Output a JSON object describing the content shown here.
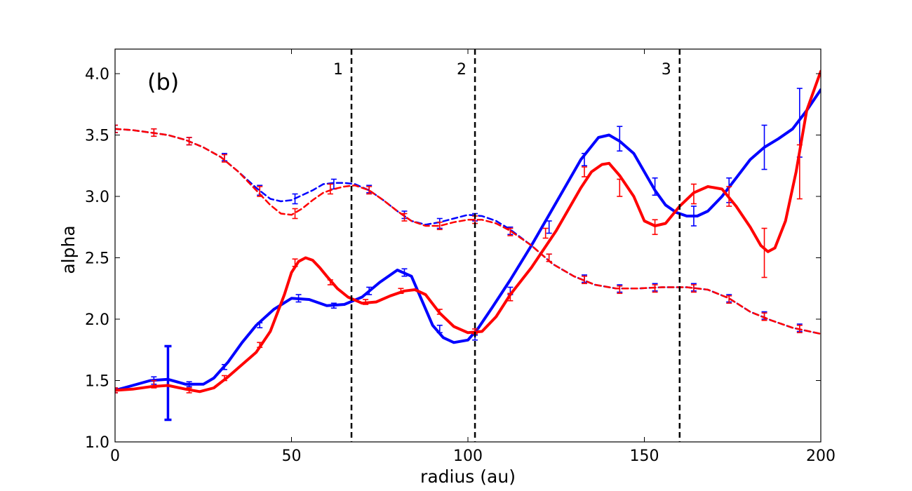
{
  "chart_data": {
    "type": "line",
    "panel_label": "(b)",
    "xlabel": "radius (au)",
    "ylabel": "alpha",
    "xlim": [
      0,
      200
    ],
    "ylim": [
      1.0,
      4.2
    ],
    "xticks": [
      0,
      50,
      100,
      150,
      200
    ],
    "yticks": [
      1.0,
      1.5,
      2.0,
      2.5,
      3.0,
      3.5,
      4.0
    ],
    "grid": false,
    "legend": null,
    "vlines": [
      {
        "x": 67,
        "label": "1"
      },
      {
        "x": 102,
        "label": "2"
      },
      {
        "x": 160,
        "label": "3"
      }
    ],
    "series": [
      {
        "color": "#0000ff",
        "style": "solid",
        "x": [
          0,
          5,
          10,
          15,
          20,
          25,
          28,
          32,
          36,
          40,
          45,
          50,
          55,
          60,
          65,
          70,
          75,
          80,
          84,
          87,
          90,
          93,
          96,
          100,
          103,
          107,
          112,
          118,
          125,
          132,
          137,
          140,
          143,
          147,
          150,
          153,
          156,
          159,
          162,
          165,
          168,
          172,
          176,
          180,
          184,
          188,
          192,
          196,
          200
        ],
        "y": [
          1.42,
          1.46,
          1.5,
          1.51,
          1.47,
          1.47,
          1.52,
          1.65,
          1.81,
          1.95,
          2.08,
          2.17,
          2.16,
          2.11,
          2.12,
          2.18,
          2.3,
          2.4,
          2.35,
          2.15,
          1.95,
          1.85,
          1.81,
          1.83,
          1.93,
          2.1,
          2.32,
          2.6,
          2.95,
          3.3,
          3.48,
          3.5,
          3.45,
          3.35,
          3.2,
          3.05,
          2.93,
          2.87,
          2.84,
          2.84,
          2.88,
          3.0,
          3.15,
          3.3,
          3.4,
          3.47,
          3.55,
          3.7,
          3.87
        ],
        "errorbars": [
          {
            "x": 0,
            "y": 1.42,
            "err": 0.02
          },
          {
            "x": 11,
            "y": 1.5,
            "err": 0.03
          },
          {
            "x": 15,
            "y": 1.48,
            "err": 0.3,
            "thick": true
          },
          {
            "x": 21,
            "y": 1.47,
            "err": 0.02
          },
          {
            "x": 31,
            "y": 1.61,
            "err": 0.02
          },
          {
            "x": 41,
            "y": 1.95,
            "err": 0.02
          },
          {
            "x": 52,
            "y": 2.17,
            "err": 0.03
          },
          {
            "x": 62,
            "y": 2.11,
            "err": 0.02
          },
          {
            "x": 72,
            "y": 2.23,
            "err": 0.03
          },
          {
            "x": 82,
            "y": 2.38,
            "err": 0.03
          },
          {
            "x": 92,
            "y": 1.92,
            "err": 0.03
          },
          {
            "x": 102,
            "y": 1.85,
            "err": 0.02
          },
          {
            "x": 112,
            "y": 2.23,
            "err": 0.03
          },
          {
            "x": 123,
            "y": 2.75,
            "err": 0.05
          },
          {
            "x": 133,
            "y": 3.3,
            "err": 0.05
          },
          {
            "x": 143,
            "y": 3.47,
            "err": 0.1
          },
          {
            "x": 153,
            "y": 3.08,
            "err": 0.07
          },
          {
            "x": 164,
            "y": 2.84,
            "err": 0.08
          },
          {
            "x": 174,
            "y": 3.05,
            "err": 0.1
          },
          {
            "x": 184,
            "y": 3.4,
            "err": 0.18
          },
          {
            "x": 194,
            "y": 3.6,
            "err": 0.28
          }
        ]
      },
      {
        "color": "#ff0000",
        "style": "solid",
        "x": [
          0,
          5,
          10,
          15,
          20,
          24,
          28,
          32,
          36,
          40,
          44,
          48,
          50,
          52,
          54,
          56,
          58,
          60,
          63,
          66,
          70,
          74,
          78,
          82,
          85,
          88,
          92,
          96,
          100,
          104,
          108,
          112,
          118,
          125,
          132,
          135,
          138,
          140,
          143,
          147,
          150,
          153,
          156,
          160,
          164,
          168,
          172,
          176,
          180,
          183,
          185,
          187,
          190,
          193,
          196,
          200
        ],
        "y": [
          1.42,
          1.43,
          1.45,
          1.46,
          1.43,
          1.41,
          1.44,
          1.53,
          1.63,
          1.73,
          1.9,
          2.2,
          2.38,
          2.47,
          2.5,
          2.48,
          2.42,
          2.35,
          2.25,
          2.18,
          2.13,
          2.14,
          2.19,
          2.23,
          2.24,
          2.2,
          2.05,
          1.94,
          1.89,
          1.9,
          2.02,
          2.2,
          2.42,
          2.72,
          3.07,
          3.2,
          3.26,
          3.27,
          3.17,
          3.0,
          2.8,
          2.76,
          2.78,
          2.92,
          3.03,
          3.08,
          3.06,
          2.92,
          2.75,
          2.6,
          2.55,
          2.58,
          2.8,
          3.2,
          3.7,
          4.02
        ],
        "errorbars": [
          {
            "x": 0,
            "y": 1.42,
            "err": 0.02
          },
          {
            "x": 11,
            "y": 1.47,
            "err": 0.03
          },
          {
            "x": 21,
            "y": 1.42,
            "err": 0.02
          },
          {
            "x": 31,
            "y": 1.52,
            "err": 0.02
          },
          {
            "x": 41,
            "y": 1.79,
            "err": 0.02
          },
          {
            "x": 51,
            "y": 2.46,
            "err": 0.03
          },
          {
            "x": 61,
            "y": 2.3,
            "err": 0.02
          },
          {
            "x": 71,
            "y": 2.14,
            "err": 0.02
          },
          {
            "x": 81,
            "y": 2.23,
            "err": 0.02
          },
          {
            "x": 92,
            "y": 2.06,
            "err": 0.02
          },
          {
            "x": 102,
            "y": 1.9,
            "err": 0.02
          },
          {
            "x": 112,
            "y": 2.18,
            "err": 0.03
          },
          {
            "x": 122,
            "y": 2.7,
            "err": 0.04
          },
          {
            "x": 133,
            "y": 3.2,
            "err": 0.04
          },
          {
            "x": 143,
            "y": 3.07,
            "err": 0.07
          },
          {
            "x": 153,
            "y": 2.75,
            "err": 0.06
          },
          {
            "x": 164,
            "y": 3.02,
            "err": 0.08
          },
          {
            "x": 174,
            "y": 3.0,
            "err": 0.08
          },
          {
            "x": 184,
            "y": 2.54,
            "err": 0.2
          },
          {
            "x": 194,
            "y": 3.2,
            "err": 0.22
          }
        ]
      },
      {
        "color": "#0000ff",
        "style": "dashed",
        "x": [
          0,
          5,
          10,
          15,
          20,
          25,
          30,
          35,
          40,
          44,
          47,
          50,
          53,
          56,
          59,
          62,
          65,
          68,
          72,
          76,
          80,
          84,
          88,
          92,
          96,
          100,
          104,
          108,
          112,
          118,
          124,
          130,
          136,
          142,
          148,
          155,
          162,
          168,
          174,
          180,
          186,
          192,
          200
        ],
        "y": [
          3.55,
          3.54,
          3.52,
          3.5,
          3.46,
          3.4,
          3.32,
          3.2,
          3.07,
          2.98,
          2.96,
          2.97,
          3.01,
          3.05,
          3.1,
          3.11,
          3.11,
          3.1,
          3.05,
          2.97,
          2.88,
          2.8,
          2.77,
          2.79,
          2.82,
          2.85,
          2.84,
          2.8,
          2.73,
          2.6,
          2.45,
          2.35,
          2.28,
          2.25,
          2.25,
          2.26,
          2.26,
          2.24,
          2.17,
          2.06,
          1.99,
          1.93,
          1.88
        ],
        "errorbars": [
          {
            "x": 0,
            "y": 3.55,
            "err": 0.03
          },
          {
            "x": 11,
            "y": 3.52,
            "err": 0.03
          },
          {
            "x": 21,
            "y": 3.45,
            "err": 0.03
          },
          {
            "x": 31,
            "y": 3.32,
            "err": 0.03
          },
          {
            "x": 41,
            "y": 3.05,
            "err": 0.04
          },
          {
            "x": 51,
            "y": 2.98,
            "err": 0.04
          },
          {
            "x": 62,
            "y": 3.1,
            "err": 0.04
          },
          {
            "x": 72,
            "y": 3.06,
            "err": 0.03
          },
          {
            "x": 82,
            "y": 2.85,
            "err": 0.03
          },
          {
            "x": 92,
            "y": 2.78,
            "err": 0.04
          },
          {
            "x": 102,
            "y": 2.83,
            "err": 0.03
          },
          {
            "x": 112,
            "y": 2.72,
            "err": 0.03
          },
          {
            "x": 123,
            "y": 2.5,
            "err": 0.03
          },
          {
            "x": 133,
            "y": 2.33,
            "err": 0.03
          },
          {
            "x": 143,
            "y": 2.25,
            "err": 0.03
          },
          {
            "x": 153,
            "y": 2.26,
            "err": 0.03
          },
          {
            "x": 164,
            "y": 2.26,
            "err": 0.03
          },
          {
            "x": 174,
            "y": 2.17,
            "err": 0.03
          },
          {
            "x": 184,
            "y": 2.03,
            "err": 0.03
          },
          {
            "x": 194,
            "y": 1.93,
            "err": 0.03
          }
        ]
      },
      {
        "color": "#ff0000",
        "style": "dashed",
        "x": [
          0,
          5,
          10,
          15,
          20,
          25,
          30,
          35,
          40,
          44,
          47,
          50,
          53,
          56,
          59,
          62,
          65,
          68,
          72,
          76,
          80,
          84,
          88,
          92,
          96,
          100,
          104,
          108,
          112,
          118,
          124,
          130,
          136,
          142,
          148,
          155,
          162,
          168,
          174,
          180,
          186,
          192,
          200
        ],
        "y": [
          3.55,
          3.54,
          3.52,
          3.5,
          3.46,
          3.4,
          3.32,
          3.2,
          3.05,
          2.93,
          2.86,
          2.85,
          2.9,
          2.97,
          3.03,
          3.06,
          3.08,
          3.09,
          3.05,
          2.97,
          2.88,
          2.8,
          2.76,
          2.76,
          2.79,
          2.81,
          2.81,
          2.78,
          2.72,
          2.6,
          2.45,
          2.35,
          2.28,
          2.25,
          2.25,
          2.26,
          2.26,
          2.24,
          2.17,
          2.06,
          1.99,
          1.93,
          1.88
        ],
        "errorbars": [
          {
            "x": 0,
            "y": 3.55,
            "err": 0.03
          },
          {
            "x": 11,
            "y": 3.52,
            "err": 0.03
          },
          {
            "x": 21,
            "y": 3.45,
            "err": 0.03
          },
          {
            "x": 31,
            "y": 3.31,
            "err": 0.03
          },
          {
            "x": 41,
            "y": 3.04,
            "err": 0.04
          },
          {
            "x": 51,
            "y": 2.86,
            "err": 0.04
          },
          {
            "x": 61,
            "y": 3.06,
            "err": 0.04
          },
          {
            "x": 72,
            "y": 3.05,
            "err": 0.03
          },
          {
            "x": 82,
            "y": 2.83,
            "err": 0.03
          },
          {
            "x": 92,
            "y": 2.76,
            "err": 0.03
          },
          {
            "x": 102,
            "y": 2.81,
            "err": 0.03
          },
          {
            "x": 112,
            "y": 2.71,
            "err": 0.03
          },
          {
            "x": 123,
            "y": 2.5,
            "err": 0.03
          },
          {
            "x": 133,
            "y": 2.32,
            "err": 0.03
          },
          {
            "x": 143,
            "y": 2.24,
            "err": 0.03
          },
          {
            "x": 153,
            "y": 2.25,
            "err": 0.03
          },
          {
            "x": 164,
            "y": 2.25,
            "err": 0.03
          },
          {
            "x": 174,
            "y": 2.16,
            "err": 0.03
          },
          {
            "x": 184,
            "y": 2.02,
            "err": 0.03
          },
          {
            "x": 194,
            "y": 1.92,
            "err": 0.03
          }
        ]
      }
    ]
  }
}
